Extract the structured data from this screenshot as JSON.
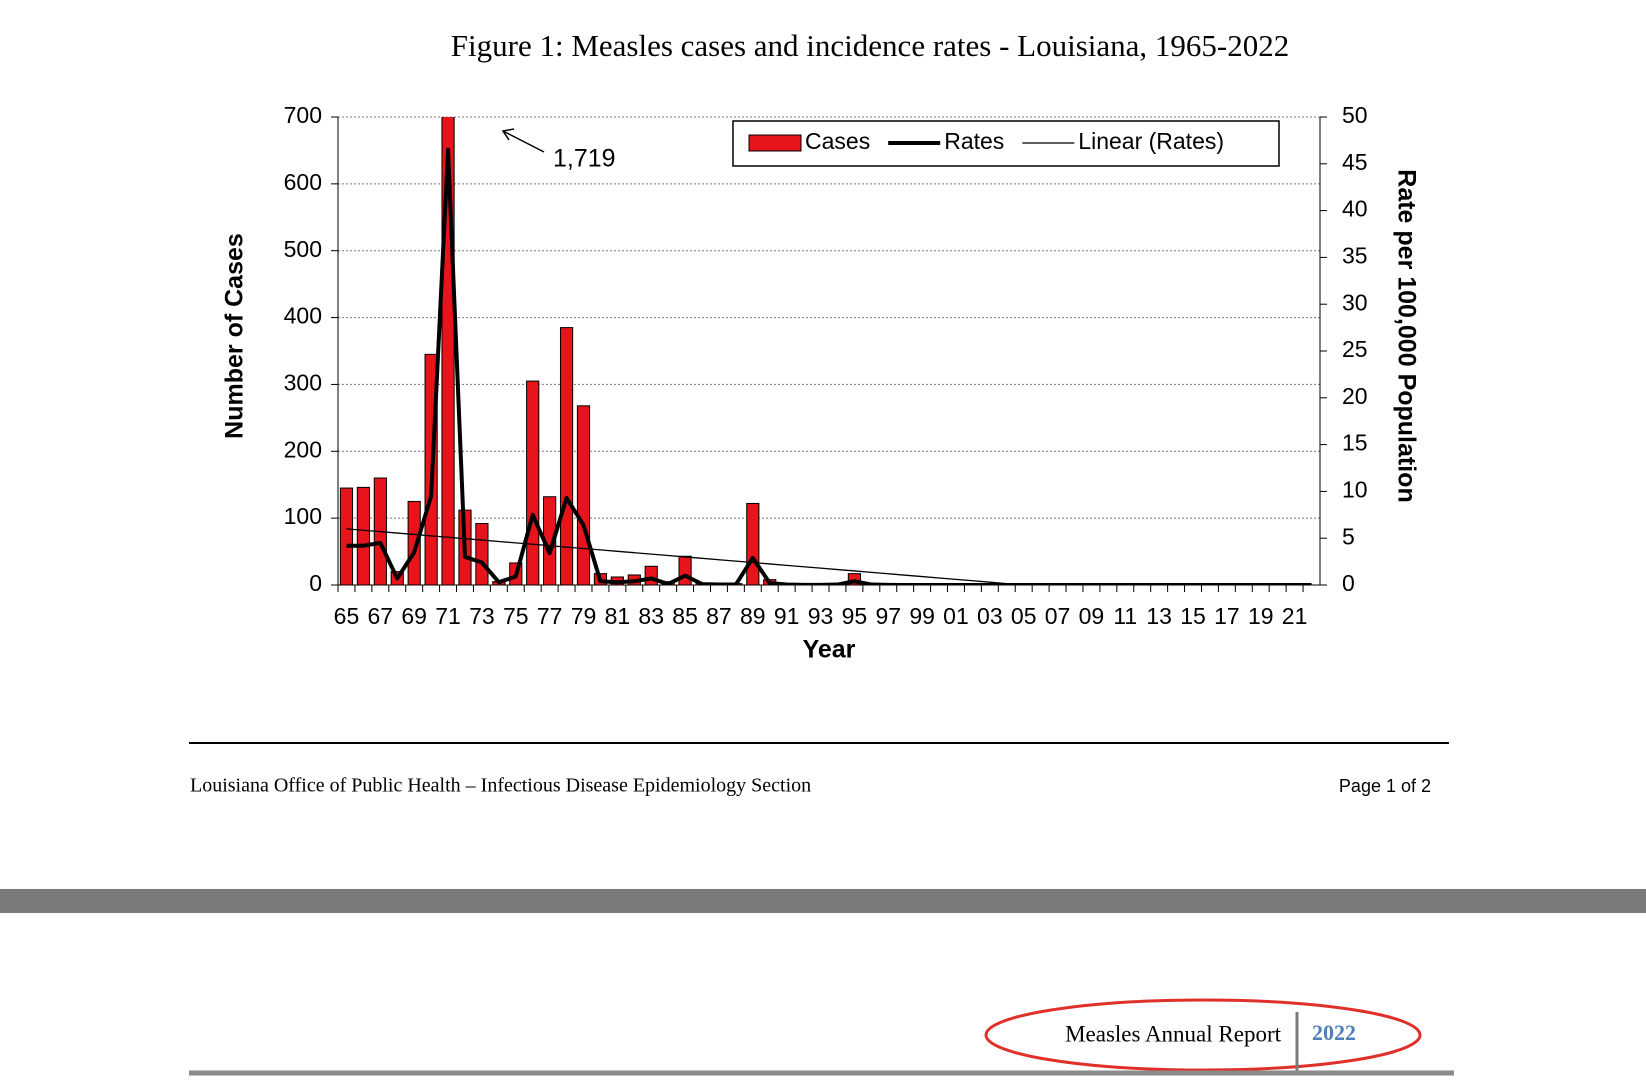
{
  "chart_data": {
    "type": "bar_line",
    "title": "Figure 1: Measles cases and incidence rates - Louisiana, 1965-2022",
    "x_label": "Year",
    "y_label": "Number of Cases",
    "y2_label": "Rate per 100,000 Population",
    "categories": [
      "65",
      null,
      "67",
      null,
      "69",
      null,
      "71",
      null,
      "73",
      null,
      "75",
      null,
      "77",
      null,
      "79",
      null,
      "81",
      null,
      "83",
      null,
      "85",
      null,
      "87",
      null,
      "89",
      null,
      "91",
      null,
      "93",
      null,
      "95",
      null,
      "97",
      null,
      "99",
      null,
      "01",
      null,
      "03",
      null,
      "05",
      null,
      "07",
      null,
      "09",
      null,
      "11",
      null,
      "13",
      null,
      "15",
      null,
      "17",
      null,
      "19",
      null,
      "21",
      null
    ],
    "series": [
      {
        "name": "Cases",
        "type": "bar",
        "color": "#e8141b",
        "values": [
          145,
          146,
          160,
          20,
          125,
          345,
          1719,
          112,
          92,
          5,
          33,
          305,
          132,
          385,
          268,
          17,
          12,
          15,
          28,
          5,
          43,
          3,
          2,
          2,
          122,
          8,
          2,
          1,
          1,
          2,
          17,
          2,
          1,
          0,
          0,
          0,
          0,
          0,
          0,
          0,
          0,
          0,
          0,
          0,
          0,
          0,
          0,
          0,
          0,
          0,
          0,
          0,
          0,
          0,
          0,
          0,
          0,
          0
        ],
        "value_labels": [
          null,
          null,
          null,
          null,
          null,
          null,
          "1,719",
          null,
          null,
          null,
          null,
          null,
          null,
          null,
          null,
          null,
          null,
          null,
          null,
          null,
          null,
          null,
          null,
          null,
          null,
          null,
          null,
          null,
          null,
          null,
          null,
          null,
          null,
          null,
          null,
          null,
          null,
          null,
          null,
          null,
          null,
          null,
          null,
          null,
          null,
          null,
          null,
          null,
          null,
          null,
          null,
          null,
          null,
          null,
          null,
          null,
          null,
          null
        ]
      },
      {
        "name": "Rates",
        "type": "line",
        "axis": "y2",
        "color": "#000000",
        "width": 4,
        "values": [
          4.2,
          4.2,
          4.5,
          0.7,
          3.5,
          9.5,
          46.5,
          3.0,
          2.4,
          0.3,
          0.9,
          7.5,
          3.4,
          9.3,
          6.4,
          0.4,
          0.3,
          0.4,
          0.7,
          0.1,
          1.0,
          0.1,
          0.05,
          0.05,
          2.9,
          0.2,
          0.05,
          0.02,
          0.02,
          0.05,
          0.4,
          0.05,
          0.02,
          0,
          0,
          0,
          0,
          0,
          0,
          0,
          0,
          0,
          0,
          0,
          0,
          0,
          0,
          0,
          0,
          0,
          0,
          0,
          0,
          0,
          0,
          0,
          0,
          0
        ]
      },
      {
        "name": "Linear (Rates)",
        "type": "line",
        "axis": "y2",
        "color": "#000000",
        "width": 1.3,
        "values": [
          6.0,
          5.85,
          5.7,
          5.55,
          5.4,
          5.25,
          5.1,
          4.95,
          4.8,
          4.65,
          4.5,
          4.35,
          4.2,
          4.05,
          3.9,
          3.75,
          3.6,
          3.45,
          3.3,
          3.15,
          3.0,
          2.85,
          2.7,
          2.55,
          2.4,
          2.25,
          2.1,
          1.95,
          1.8,
          1.65,
          1.5,
          1.35,
          1.2,
          1.05,
          0.9,
          0.75,
          0.6,
          0.45,
          0.3,
          0.15,
          0.0,
          null,
          null,
          null,
          null,
          null,
          null,
          null,
          null,
          null,
          null,
          null,
          null,
          null,
          null,
          null,
          null,
          null
        ]
      }
    ],
    "ylim": [
      0,
      700
    ],
    "yticks": [
      0,
      100,
      200,
      300,
      400,
      500,
      600,
      700
    ],
    "y2lim": [
      0,
      50
    ],
    "y2ticks": [
      0,
      5,
      10,
      15,
      20,
      25,
      30,
      35,
      40,
      45,
      50
    ],
    "grid": true,
    "legend": "top-right"
  },
  "footer": {
    "left": "Louisiana Office of Public Health – Infectious Disease Epidemiology Section",
    "right": "Page 1 of 2"
  },
  "header": {
    "report_title": "Measles Annual Report",
    "year": "2022"
  }
}
